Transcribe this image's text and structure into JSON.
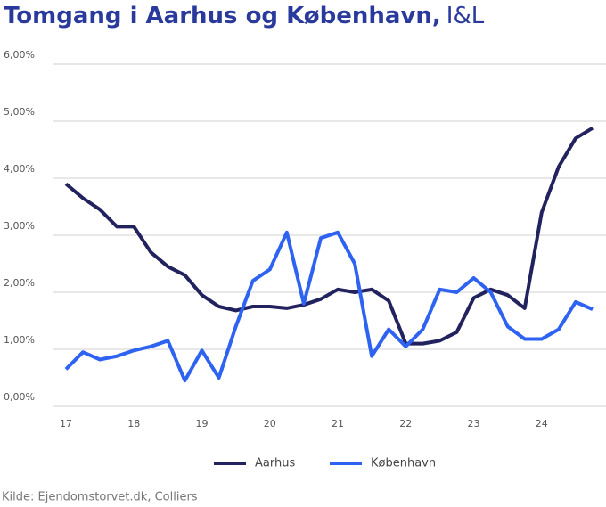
{
  "chart_data": {
    "type": "line",
    "title": "Tomgang i Aarhus og København,",
    "subtitle": "I&L",
    "source": "Kilde: Ejendomstorvet.dk, Colliers",
    "categories": [
      "17",
      null,
      null,
      null,
      "18",
      null,
      null,
      null,
      "19",
      null,
      null,
      null,
      "20",
      null,
      null,
      null,
      "21",
      null,
      null,
      null,
      "22",
      null,
      null,
      null,
      "23",
      null,
      null,
      null,
      "24",
      null,
      null,
      null
    ],
    "series": [
      {
        "name": "Aarhus",
        "color": "#22235e",
        "values": [
          3.9,
          3.65,
          3.45,
          3.15,
          3.15,
          2.7,
          2.45,
          2.3,
          1.95,
          1.75,
          1.68,
          1.75,
          1.75,
          1.72,
          1.78,
          1.88,
          2.05,
          2.0,
          2.05,
          1.85,
          1.1,
          1.1,
          1.15,
          1.3,
          1.9,
          2.05,
          1.95,
          1.72,
          3.4,
          4.2,
          4.7,
          4.88
        ]
      },
      {
        "name": "København",
        "color": "#2e62f0",
        "values": [
          0.65,
          0.95,
          0.82,
          0.88,
          0.98,
          1.05,
          1.15,
          0.45,
          0.98,
          0.5,
          1.4,
          2.2,
          2.4,
          3.05,
          1.8,
          2.95,
          3.05,
          2.5,
          0.88,
          1.35,
          1.05,
          1.35,
          2.05,
          2.0,
          2.25,
          2.0,
          1.4,
          1.18,
          1.18,
          1.35,
          1.83,
          1.7
        ]
      }
    ],
    "ylim": [
      0,
      6
    ],
    "yticks": [
      {
        "value": 0,
        "label": "0,00%"
      },
      {
        "value": 1,
        "label": "1,00%"
      },
      {
        "value": 2,
        "label": "2,00%"
      },
      {
        "value": 3,
        "label": "3,00%"
      },
      {
        "value": 4,
        "label": "4,00%"
      },
      {
        "value": 5,
        "label": "5,00%"
      },
      {
        "value": 6,
        "label": "6,00%"
      }
    ],
    "grid": true,
    "legend": "bottom"
  }
}
